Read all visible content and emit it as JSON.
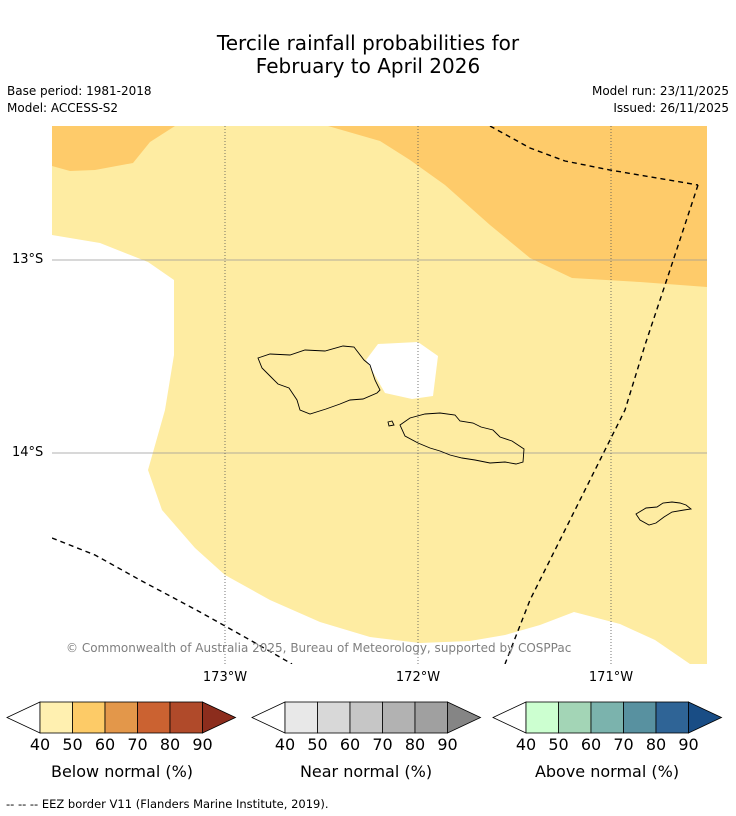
{
  "title_line1": "Tercile rainfall probabilities for",
  "title_line2": "February to April 2026",
  "base_period": "Base period: 1981-2018",
  "model": "Model: ACCESS-S2",
  "model_run": "Model run: 23/11/2025",
  "issued": "Issued: 26/11/2025",
  "lat_labels": [
    "13°S",
    "14°S"
  ],
  "lon_labels": [
    "173°W",
    "172°W",
    "171°W"
  ],
  "copyright": "© Commonwealth of Australia 2025, Bureau of Meteorology, supported by COSPPac",
  "colorbars": [
    {
      "label": "Below normal (%)",
      "ticks": [
        "40",
        "50",
        "60",
        "70",
        "80",
        "90"
      ],
      "colors": [
        "#fff0b0",
        "#fdcb67",
        "#e3974a",
        "#cb6231",
        "#b04a2a",
        "#8c2d1d"
      ]
    },
    {
      "label": "Near normal (%)",
      "ticks": [
        "40",
        "50",
        "60",
        "70",
        "80",
        "90"
      ],
      "colors": [
        "#e8e8e8",
        "#d8d8d8",
        "#c6c6c6",
        "#b2b2b2",
        "#a0a0a0",
        "#858585"
      ]
    },
    {
      "label": "Above normal (%)",
      "ticks": [
        "40",
        "50",
        "60",
        "70",
        "80",
        "90"
      ],
      "colors": [
        "#ccffd0",
        "#a3d5b6",
        "#7bb3ad",
        "#5891a0",
        "#2f6496",
        "#194d85"
      ]
    }
  ],
  "footer": "-- -- -- EEZ border V11 (Flanders Marine Institute, 2019).",
  "colors": {
    "light_yellow": "#feeca2",
    "orange": "#fecb6a"
  }
}
